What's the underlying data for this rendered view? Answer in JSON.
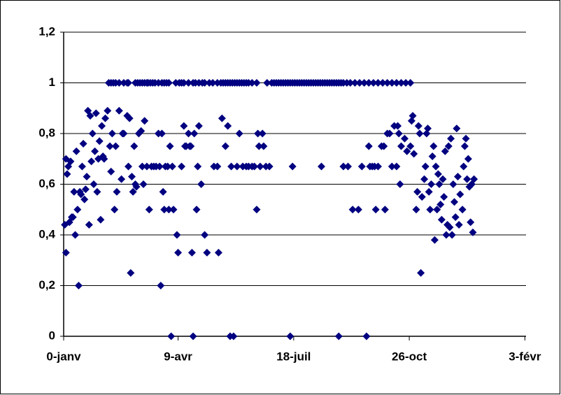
{
  "chart_data": {
    "type": "scatter",
    "color": "#000080",
    "grid": true,
    "xlim": [
      0,
      400
    ],
    "xticks": [
      {
        "value": 0,
        "label": "0-janv"
      },
      {
        "value": 99,
        "label": "9-avr"
      },
      {
        "value": 199,
        "label": "18-juil"
      },
      {
        "value": 299,
        "label": "26-oct"
      },
      {
        "value": 399,
        "label": "3-févr"
      }
    ],
    "ylim": [
      0,
      1.2
    ],
    "yticks": [
      {
        "value": 0,
        "label": "0"
      },
      {
        "value": 0.2,
        "label": "0,2"
      },
      {
        "value": 0.4,
        "label": "0,4"
      },
      {
        "value": 0.6,
        "label": "0,6"
      },
      {
        "value": 0.8,
        "label": "0,8"
      },
      {
        "value": 1,
        "label": "1"
      },
      {
        "value": 1.2,
        "label": "1,2"
      }
    ],
    "x": [
      1,
      2,
      2,
      3,
      4,
      5,
      6,
      7,
      8,
      9,
      10,
      11,
      12,
      13,
      14,
      15,
      16,
      17,
      18,
      19,
      20,
      21,
      22,
      23,
      24,
      25,
      26,
      27,
      28,
      29,
      30,
      31,
      32,
      33,
      34,
      35,
      36,
      38,
      40,
      41,
      42,
      44,
      45,
      46,
      48,
      50,
      51,
      52,
      55,
      56,
      57,
      58,
      59,
      60,
      61,
      62,
      63,
      65,
      67,
      68,
      69,
      70,
      72,
      74,
      76,
      78,
      80,
      82,
      83,
      84,
      85,
      86,
      87,
      88,
      90,
      91,
      92,
      93,
      94,
      95,
      98,
      99,
      102,
      104,
      105,
      106,
      108,
      109,
      110,
      111,
      112,
      113,
      115,
      116,
      117,
      119,
      122,
      124,
      130,
      133,
      134,
      137,
      140,
      142,
      144,
      145,
      147,
      150,
      152,
      155,
      158,
      160,
      163,
      165,
      167,
      168,
      169,
      170,
      172,
      173,
      175,
      178,
      196,
      198,
      223,
      238,
      242,
      246,
      250,
      255,
      258,
      262,
      264,
      265,
      267,
      269,
      270,
      272,
      275,
      277,
      278,
      280,
      282,
      284,
      286,
      288,
      289,
      290,
      291,
      292,
      295,
      297,
      300,
      301,
      302,
      303,
      305,
      306,
      307,
      308,
      309,
      310,
      312,
      313,
      314,
      315,
      316,
      317,
      318,
      319,
      320,
      321,
      322,
      323,
      324,
      325,
      326,
      327,
      328,
      329,
      330,
      331,
      332,
      333,
      334,
      335,
      336,
      337,
      338,
      339,
      340,
      341,
      342,
      343,
      345,
      346,
      347,
      348,
      349,
      350,
      351,
      352,
      353,
      354,
      355,
      39,
      41,
      43,
      45,
      48,
      52,
      55,
      56,
      62,
      64,
      66,
      68,
      70,
      72,
      73,
      75,
      77,
      79,
      82,
      85,
      87,
      89,
      91,
      97,
      100,
      102,
      104,
      108,
      112,
      114,
      117,
      120,
      122,
      126,
      129,
      133,
      136,
      138,
      140,
      142,
      144,
      146,
      148,
      150,
      152,
      154,
      156,
      158,
      160,
      163,
      167,
      176,
      180,
      182,
      184,
      186,
      188,
      190,
      192,
      194,
      196,
      198,
      200,
      202,
      204,
      206,
      208,
      210,
      212,
      214,
      216,
      218,
      220,
      222,
      224,
      226,
      228,
      230,
      232,
      234,
      236,
      238,
      240,
      242,
      245,
      248,
      252,
      256,
      260,
      264,
      268,
      272,
      276,
      280,
      284,
      288,
      292,
      296,
      300
    ],
    "values": [
      0.44,
      0.33,
      0.7,
      0.64,
      0.67,
      0.45,
      0.69,
      0.47,
      0.47,
      0.57,
      0.4,
      0.73,
      0.5,
      0.2,
      0.57,
      0.56,
      0.67,
      0.76,
      0.54,
      0.58,
      0.63,
      0.89,
      0.44,
      0.87,
      0.69,
      0.8,
      0.6,
      0.73,
      0.88,
      0.57,
      0.7,
      0.77,
      0.46,
      0.83,
      0.71,
      0.7,
      0.86,
      0.89,
      0.75,
      0.65,
      0.8,
      0.5,
      0.75,
      0.57,
      0.89,
      0.62,
      0.8,
      0.8,
      0.87,
      0.67,
      0.86,
      0.25,
      0.63,
      0.57,
      0.75,
      0.6,
      0.59,
      0.8,
      0.81,
      0.67,
      0.6,
      0.85,
      0.67,
      0.5,
      0.67,
      0.67,
      0.67,
      0.8,
      0.67,
      0.2,
      0.8,
      0.57,
      0.5,
      0.67,
      0.67,
      0.5,
      0.75,
      0,
      0.67,
      0.5,
      0.4,
      0.33,
      0.67,
      0.83,
      0.75,
      0.75,
      0.8,
      0.75,
      0.75,
      0.33,
      0,
      0.8,
      0.5,
      0.67,
      0.83,
      0.6,
      0.4,
      0.33,
      0.67,
      0.67,
      0.33,
      0.86,
      0.75,
      0.83,
      0,
      0.67,
      0,
      0.67,
      0.8,
      0.67,
      0.67,
      0.67,
      0.67,
      0.67,
      0.5,
      0.8,
      0.75,
      0.67,
      0.8,
      0.75,
      0.67,
      0.67,
      0,
      0.67,
      0.67,
      0,
      0.67,
      0.67,
      0.5,
      0.5,
      0.67,
      0,
      0.75,
      0.67,
      0.67,
      0.67,
      0.5,
      0.67,
      0.75,
      0.75,
      0.5,
      0.8,
      0.8,
      0.67,
      0.83,
      0.67,
      0.83,
      0.8,
      0.6,
      0.75,
      0.78,
      0.73,
      0.75,
      0.85,
      0.87,
      0.72,
      0.5,
      0.57,
      0.83,
      0.8,
      0.25,
      0.55,
      0.62,
      0.67,
      0.8,
      0.82,
      0.57,
      0.5,
      0.6,
      0.71,
      0.75,
      0.38,
      0.67,
      0.5,
      0.64,
      0.6,
      0.52,
      0.46,
      0.62,
      0.55,
      0.73,
      0.4,
      0.44,
      0.75,
      0.43,
      0.78,
      0.4,
      0.6,
      0.53,
      0.47,
      0.82,
      0.63,
      0.44,
      0.56,
      0.5,
      0.67,
      0.75,
      0.78,
      0.62,
      0.7,
      0.59,
      0.45,
      0.6,
      0.41,
      0.62,
      1,
      1,
      1,
      1,
      1,
      1,
      1,
      1,
      1,
      1,
      1,
      1,
      1,
      1,
      1,
      1,
      1,
      1,
      1,
      1,
      1,
      1,
      1,
      1,
      1,
      1,
      1,
      1,
      1,
      1,
      1,
      1,
      1,
      1,
      1,
      1,
      1,
      1,
      1,
      1,
      1,
      1,
      1,
      1,
      1,
      1,
      1,
      1,
      1,
      1,
      1,
      1,
      1,
      1,
      1,
      1,
      1,
      1,
      1,
      1,
      1,
      1,
      1,
      1,
      1,
      1,
      1,
      1,
      1,
      1,
      1,
      1,
      1,
      1,
      1,
      1,
      1,
      1,
      1,
      1,
      1,
      1,
      1,
      1,
      1,
      1,
      1,
      1,
      1,
      1,
      1,
      1,
      1,
      1,
      1,
      1,
      1,
      1,
      1
    ]
  }
}
